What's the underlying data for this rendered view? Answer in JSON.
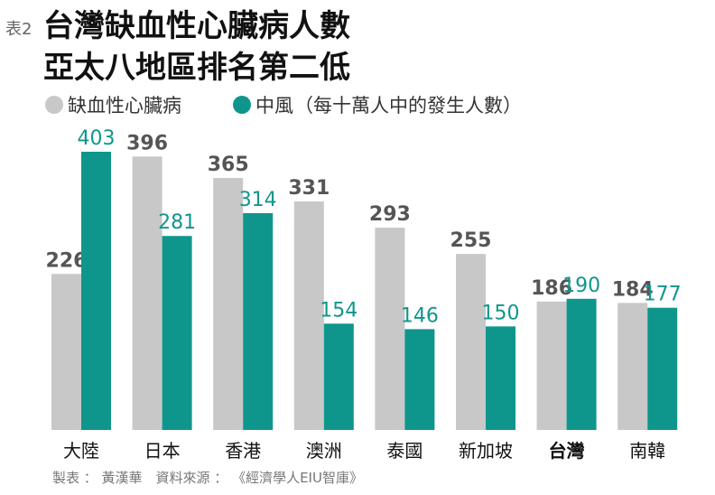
{
  "chart_data": {
    "type": "bar",
    "tag": "表2",
    "title": "台灣缺血性心臟病人數",
    "title_line2": "亞太八地區排名第二低",
    "subtitle": "（每十萬人中的發生人數）",
    "categories": [
      "大陸",
      "日本",
      "香港",
      "澳洲",
      "泰國",
      "新加坡",
      "台灣",
      "南韓"
    ],
    "highlight_index": 6,
    "series": [
      {
        "name": "缺血性心臟病",
        "color": "#c8c8c8",
        "values": [
          226,
          396,
          365,
          331,
          293,
          255,
          186,
          184
        ]
      },
      {
        "name": "中風",
        "color": "#0f968c",
        "values": [
          403,
          281,
          314,
          154,
          146,
          150,
          190,
          177
        ]
      }
    ],
    "footnote": "製表 ： 黃漢華　資料來源 ： 《經濟學人EIU智庫》"
  }
}
